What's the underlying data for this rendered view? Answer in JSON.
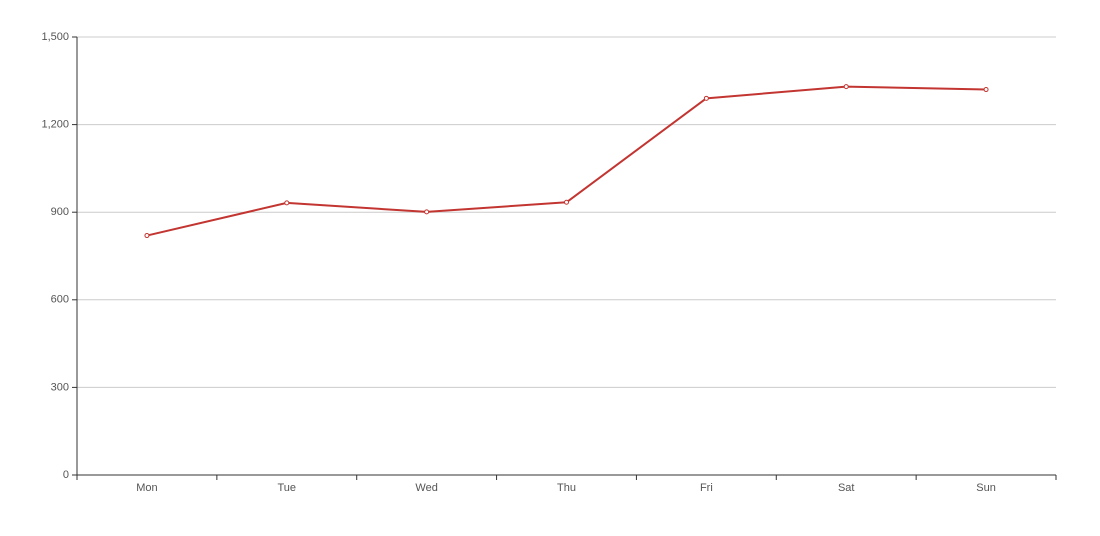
{
  "chart_data": {
    "type": "line",
    "categories": [
      "Mon",
      "Tue",
      "Wed",
      "Thu",
      "Fri",
      "Sat",
      "Sun"
    ],
    "values": [
      820,
      932,
      901,
      934,
      1290,
      1330,
      1320
    ],
    "color": "#c23531",
    "ylim": [
      0,
      1500
    ],
    "yticks": [
      0,
      300,
      600,
      900,
      {
        "value": 1200,
        "label": "1,200"
      },
      {
        "value": 1500,
        "label": "1,500"
      }
    ],
    "grid": true
  }
}
